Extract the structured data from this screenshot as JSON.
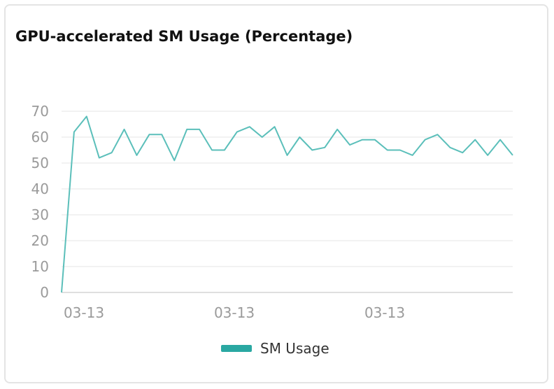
{
  "chart_data": {
    "type": "line",
    "title": "GPU-accelerated SM Usage (Percentage)",
    "xlabel": "",
    "ylabel": "",
    "ylim": [
      0,
      70
    ],
    "yticks": [
      0,
      10,
      20,
      30,
      40,
      50,
      60,
      70
    ],
    "xtick_labels": [
      "03-13",
      "03-13",
      "03-13"
    ],
    "grid": true,
    "legend_position": "bottom-center",
    "series": [
      {
        "name": "SM Usage",
        "color": "#5bbfba",
        "legend_color": "#2aa8a2",
        "values": [
          0,
          62,
          68,
          52,
          54,
          63,
          53,
          61,
          61,
          51,
          63,
          63,
          55,
          55,
          62,
          64,
          60,
          64,
          53,
          60,
          55,
          56,
          63,
          57,
          59,
          59,
          55,
          55,
          53,
          59,
          61,
          56,
          54,
          59,
          53,
          59,
          53
        ]
      }
    ]
  }
}
